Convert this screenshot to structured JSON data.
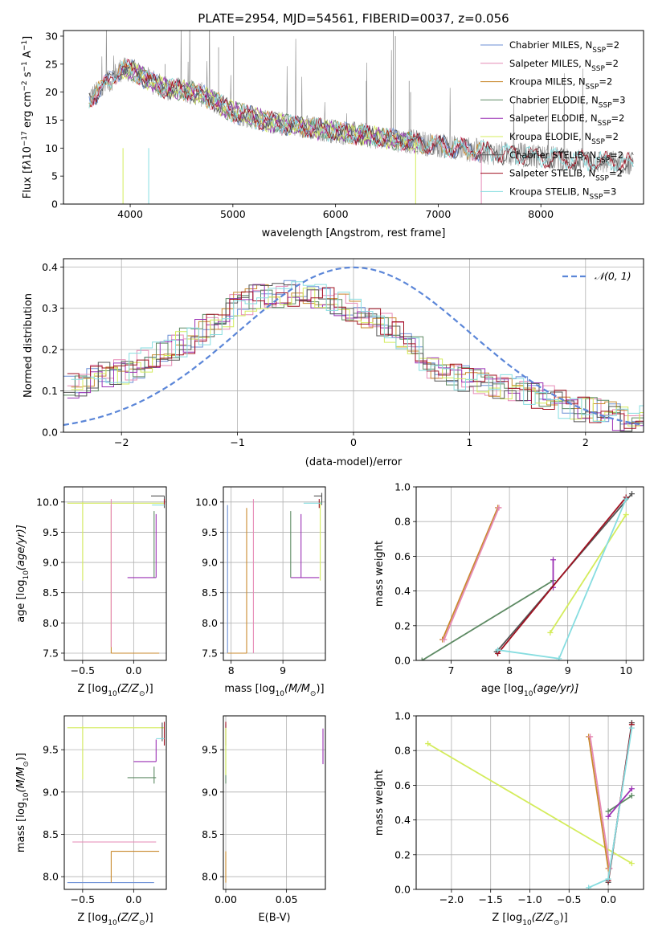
{
  "title": "PLATE=2954, MJD=54561, FIBERID=0037, z=0.056",
  "colors": {
    "Chabrier MILES": "#6b8fd6",
    "Salpeter MILES": "#e68ab6",
    "Kroupa MILES": "#c98a2e",
    "Chabrier ELODIE": "#5d8a63",
    "Salpeter ELODIE": "#9b30b5",
    "Kroupa ELODIE": "#d4ec5c",
    "Chabrier STELIB": "#555555",
    "Salpeter STELIB": "#a01020",
    "Kroupa STELIB": "#86dde0",
    "data": "#8c8c8c",
    "gaussian": "#5b86d8"
  },
  "chart_data": [
    {
      "type": "line",
      "id": "spectrum",
      "title": "PLATE=2954, MJD=54561, FIBERID=0037, z=0.056",
      "xlabel": "wavelength [Angstrom, rest frame]",
      "ylabel_parts": [
        "Flux [f",
        "λ",
        "10",
        "−17",
        " erg cm",
        "−2",
        " s",
        "−1",
        " A",
        "−1",
        "]"
      ],
      "xlim": [
        3350,
        9000
      ],
      "ylim": [
        0,
        31
      ],
      "xticks": [
        4000,
        5000,
        6000,
        7000,
        8000
      ],
      "yticks": [
        0,
        5,
        10,
        15,
        20,
        25,
        30
      ],
      "legend": [
        {
          "name": "Chabrier MILES",
          "nssp": "2"
        },
        {
          "name": "Salpeter MILES",
          "nssp": "2"
        },
        {
          "name": "Kroupa MILES",
          "nssp": "2"
        },
        {
          "name": "Chabrier ELODIE",
          "nssp": "3"
        },
        {
          "name": "Salpeter ELODIE",
          "nssp": "2"
        },
        {
          "name": "Kroupa ELODIE",
          "nssp": "2"
        },
        {
          "name": "Chabrier STELIB",
          "nssp": "2"
        },
        {
          "name": "Salpeter STELIB",
          "nssp": "2"
        },
        {
          "name": "Kroupa STELIB",
          "nssp": "3"
        }
      ],
      "legend_prefix": ", N",
      "legend_sub": "SSP",
      "legend_suffix": "=",
      "legend_position": "upper right",
      "continuum": {
        "x": [
          3600,
          3700,
          3800,
          3900,
          4000,
          4100,
          4200,
          4300,
          4400,
          4500,
          4600,
          4700,
          4800,
          4900,
          5000,
          5200,
          5400,
          5600,
          5800,
          6000,
          6200,
          6400,
          6600,
          6800,
          7000,
          7200,
          7400,
          7600,
          7800,
          8000,
          8200,
          8400,
          8600,
          8800
        ],
        "y": [
          19,
          20,
          22,
          24,
          24,
          23,
          22,
          21,
          20.5,
          20.5,
          20,
          19.5,
          18.5,
          17.5,
          16.5,
          15.5,
          14.5,
          14,
          13.5,
          13,
          12.5,
          12,
          11.5,
          11,
          10.5,
          10,
          9.5,
          9,
          8.8,
          8.5,
          8,
          7.8,
          7.5,
          7.3
        ]
      }
    },
    {
      "type": "line",
      "id": "residual-histogram",
      "xlabel": "(data-model)/error",
      "ylabel": "Normed distribution",
      "xlim": [
        -2.5,
        2.5
      ],
      "ylim": [
        0,
        0.42
      ],
      "xticks": [
        -2,
        -1,
        0,
        1,
        2
      ],
      "yticks": [
        0.0,
        0.1,
        0.2,
        0.3,
        0.4
      ],
      "legend_label": "𝒩(0, 1)",
      "gaussian": {
        "mean": 0,
        "sigma": 1
      },
      "histogram_envelope": {
        "x": [
          -2.5,
          -2.2,
          -2.0,
          -1.8,
          -1.5,
          -1.2,
          -1.0,
          -0.8,
          -0.5,
          -0.3,
          0.0,
          0.2,
          0.5,
          0.7,
          1.0,
          1.3,
          1.6,
          1.9,
          2.2,
          2.5
        ],
        "y": [
          0.11,
          0.13,
          0.15,
          0.17,
          0.21,
          0.26,
          0.31,
          0.33,
          0.34,
          0.33,
          0.3,
          0.27,
          0.22,
          0.15,
          0.13,
          0.11,
          0.09,
          0.06,
          0.04,
          0.03
        ]
      }
    },
    {
      "type": "scatter",
      "id": "age-vs-Z",
      "xlabel_parts": [
        "Z [log",
        "10",
        "(Z/Z",
        "⊙",
        ")]"
      ],
      "ylabel_parts": [
        "age  [log",
        "10",
        "(age/yr)]"
      ],
      "xlim": [
        -0.68,
        0.32
      ],
      "ylim": [
        7.38,
        10.25
      ],
      "xticks": [
        -0.5,
        0.0
      ],
      "yticks": [
        7.5,
        8.0,
        8.5,
        9.0,
        9.5,
        10.0
      ],
      "segments": [
        {
          "model": "Kroupa ELODIE",
          "x": [
            -0.5,
            -0.5
          ],
          "y": [
            8.7,
            10.0
          ]
        },
        {
          "model": "Kroupa ELODIE",
          "x": [
            -0.65,
            0.3
          ],
          "y": [
            9.98,
            9.98
          ]
        },
        {
          "model": "Kroupa MILES",
          "x": [
            -0.22,
            -0.22
          ],
          "y": [
            7.5,
            9.95
          ]
        },
        {
          "model": "Kroupa MILES",
          "x": [
            -0.22,
            0.25
          ],
          "y": [
            7.5,
            7.5
          ]
        },
        {
          "model": "Salpeter MILES",
          "x": [
            -0.22,
            -0.22
          ],
          "y": [
            7.6,
            10.05
          ]
        },
        {
          "model": "Salpeter ELODIE",
          "x": [
            0.22,
            0.22
          ],
          "y": [
            8.75,
            9.8
          ]
        },
        {
          "model": "Salpeter ELODIE",
          "x": [
            -0.06,
            0.22
          ],
          "y": [
            8.75,
            8.75
          ]
        },
        {
          "model": "Chabrier ELODIE",
          "x": [
            0.2,
            0.2
          ],
          "y": [
            8.75,
            9.85
          ]
        },
        {
          "model": "Chabrier STELIB",
          "x": [
            0.3,
            0.3
          ],
          "y": [
            9.9,
            10.1
          ]
        },
        {
          "model": "Chabrier STELIB",
          "x": [
            0.17,
            0.3
          ],
          "y": [
            10.1,
            10.1
          ]
        },
        {
          "model": "Salpeter STELIB",
          "x": [
            0.3,
            0.3
          ],
          "y": [
            9.95,
            10.05
          ]
        },
        {
          "model": "Kroupa STELIB",
          "x": [
            0.18,
            0.3
          ],
          "y": [
            9.95,
            9.95
          ]
        }
      ]
    },
    {
      "type": "scatter",
      "id": "age-vs-mass",
      "xlabel_parts": [
        "mass [log",
        "10",
        "(M/M",
        "⊙",
        ")]"
      ],
      "xlim": [
        7.85,
        9.82
      ],
      "ylim": [
        7.38,
        10.25
      ],
      "xticks": [
        8,
        9
      ],
      "yticks": [
        7.5,
        8.0,
        8.5,
        9.0,
        9.5,
        10.0
      ],
      "segments": [
        {
          "model": "Chabrier MILES",
          "x": [
            7.93,
            7.93
          ],
          "y": [
            7.5,
            9.95
          ]
        },
        {
          "model": "Kroupa MILES",
          "x": [
            8.3,
            8.3
          ],
          "y": [
            7.5,
            9.9
          ]
        },
        {
          "model": "Salpeter MILES",
          "x": [
            8.43,
            8.43
          ],
          "y": [
            7.5,
            10.05
          ]
        },
        {
          "model": "Kroupa MILES",
          "x": [
            7.93,
            8.3
          ],
          "y": [
            7.5,
            7.5
          ]
        },
        {
          "model": "Chabrier ELODIE",
          "x": [
            9.15,
            9.15
          ],
          "y": [
            8.75,
            9.85
          ]
        },
        {
          "model": "Salpeter ELODIE",
          "x": [
            9.35,
            9.35
          ],
          "y": [
            8.75,
            9.8
          ]
        },
        {
          "model": "Salpeter ELODIE",
          "x": [
            9.15,
            9.7
          ],
          "y": [
            8.75,
            8.75
          ]
        },
        {
          "model": "Kroupa ELODIE",
          "x": [
            9.72,
            9.72
          ],
          "y": [
            8.7,
            10.0
          ]
        },
        {
          "model": "Chabrier STELIB",
          "x": [
            9.6,
            9.75
          ],
          "y": [
            10.1,
            10.1
          ]
        },
        {
          "model": "Chabrier STELIB",
          "x": [
            9.75,
            9.75
          ],
          "y": [
            9.95,
            10.15
          ]
        },
        {
          "model": "Salpeter STELIB",
          "x": [
            9.7,
            9.7
          ],
          "y": [
            9.9,
            10.05
          ]
        },
        {
          "model": "Kroupa STELIB",
          "x": [
            9.4,
            9.75
          ],
          "y": [
            9.98,
            9.98
          ]
        }
      ]
    },
    {
      "type": "line",
      "id": "massweight-vs-age",
      "xlabel_parts": [
        "age  [log",
        "10",
        "(age/yr)]"
      ],
      "ylabel": "mass weight",
      "xlim": [
        6.4,
        10.3
      ],
      "ylim": [
        0,
        1.0
      ],
      "xticks": [
        7,
        8,
        9,
        10
      ],
      "yticks": [
        0.0,
        0.2,
        0.4,
        0.6,
        0.8,
        1.0
      ],
      "series": [
        {
          "model": "Kroupa MILES",
          "x": [
            6.85,
            7.8
          ],
          "y": [
            0.12,
            0.88
          ]
        },
        {
          "model": "Salpeter MILES",
          "x": [
            6.88,
            7.82
          ],
          "y": [
            0.12,
            0.88
          ]
        },
        {
          "model": "Chabrier ELODIE",
          "x": [
            6.5,
            8.75
          ],
          "y": [
            0.0,
            0.46
          ]
        },
        {
          "model": "Salpeter ELODIE",
          "x": [
            8.75,
            8.75
          ],
          "y": [
            0.42,
            0.58
          ]
        },
        {
          "model": "Chabrier STELIB",
          "x": [
            7.78,
            10.1
          ],
          "y": [
            0.05,
            0.96
          ]
        },
        {
          "model": "Salpeter STELIB",
          "x": [
            7.8,
            10.0
          ],
          "y": [
            0.04,
            0.94
          ]
        },
        {
          "model": "Kroupa ELODIE",
          "x": [
            8.7,
            10.0
          ],
          "y": [
            0.16,
            0.84
          ]
        },
        {
          "model": "Kroupa STELIB",
          "x": [
            7.8,
            8.85,
            10.0
          ],
          "y": [
            0.06,
            0.01,
            0.93
          ]
        }
      ]
    },
    {
      "type": "scatter",
      "id": "mass-vs-Z",
      "xlabel_parts": [
        "Z [log",
        "10",
        "(Z/Z",
        "⊙",
        ")]"
      ],
      "ylabel_parts": [
        "mass [log",
        "10",
        "(M/M",
        "⊙",
        ")]"
      ],
      "xlim": [
        -0.68,
        0.32
      ],
      "ylim": [
        7.85,
        9.9
      ],
      "xticks": [
        -0.5,
        0.0
      ],
      "yticks": [
        8.0,
        8.5,
        9.0,
        9.5
      ],
      "segments": [
        {
          "model": "Chabrier MILES",
          "x": [
            -0.65,
            0.2
          ],
          "y": [
            7.93,
            7.93
          ]
        },
        {
          "model": "Salpeter MILES",
          "x": [
            -0.6,
            0.22
          ],
          "y": [
            8.41,
            8.41
          ]
        },
        {
          "model": "Kroupa MILES",
          "x": [
            -0.22,
            0.25
          ],
          "y": [
            8.3,
            8.3
          ]
        },
        {
          "model": "Kroupa MILES",
          "x": [
            -0.22,
            -0.22
          ],
          "y": [
            7.93,
            8.3
          ]
        },
        {
          "model": "Chabrier ELODIE",
          "x": [
            -0.06,
            0.22
          ],
          "y": [
            9.17,
            9.17
          ]
        },
        {
          "model": "Chabrier ELODIE",
          "x": [
            0.2,
            0.2
          ],
          "y": [
            9.1,
            9.3
          ]
        },
        {
          "model": "Salpeter ELODIE",
          "x": [
            0.0,
            0.22
          ],
          "y": [
            9.36,
            9.36
          ]
        },
        {
          "model": "Salpeter ELODIE",
          "x": [
            0.22,
            0.22
          ],
          "y": [
            9.36,
            9.62
          ]
        },
        {
          "model": "Kroupa ELODIE",
          "x": [
            -0.65,
            0.3
          ],
          "y": [
            9.76,
            9.76
          ]
        },
        {
          "model": "Kroupa ELODIE",
          "x": [
            -0.5,
            -0.5
          ],
          "y": [
            9.15,
            9.78
          ]
        },
        {
          "model": "Chabrier STELIB",
          "x": [
            0.28,
            0.28
          ],
          "y": [
            9.6,
            9.82
          ]
        },
        {
          "model": "Salpeter STELIB",
          "x": [
            0.3,
            0.3
          ],
          "y": [
            9.55,
            9.83
          ]
        },
        {
          "model": "Kroupa STELIB",
          "x": [
            0.22,
            0.3
          ],
          "y": [
            9.63,
            9.63
          ]
        }
      ]
    },
    {
      "type": "scatter",
      "id": "mass-vs-ebv",
      "xlabel": "E(B-V)",
      "xlim": [
        -0.002,
        0.082
      ],
      "ylim": [
        7.85,
        9.9
      ],
      "xticks": [
        0.0,
        0.05
      ],
      "yticks": [
        8.0,
        8.5,
        9.0,
        9.5
      ],
      "segments": [
        {
          "model": "Kroupa MILES",
          "x": [
            0.0,
            0.0
          ],
          "y": [
            7.93,
            8.3
          ]
        },
        {
          "model": "Chabrier ELODIE",
          "x": [
            0.0,
            0.0
          ],
          "y": [
            9.1,
            9.8
          ]
        },
        {
          "model": "Salpeter STELIB",
          "x": [
            0.0,
            0.0
          ],
          "y": [
            9.55,
            9.83
          ]
        },
        {
          "model": "Kroupa ELODIE",
          "x": [
            0.0,
            0.0
          ],
          "y": [
            9.2,
            9.76
          ]
        },
        {
          "model": "Salpeter ELODIE",
          "x": [
            0.08,
            0.08
          ],
          "y": [
            9.33,
            9.75
          ]
        }
      ]
    },
    {
      "type": "line",
      "id": "massweight-vs-Z",
      "xlabel_parts": [
        "Z [log",
        "10",
        "(Z/Z",
        "⊙",
        ")]"
      ],
      "ylabel": "mass weight",
      "xlim": [
        -2.45,
        0.45
      ],
      "ylim": [
        0,
        1.0
      ],
      "xticks": [
        -2.0,
        -1.5,
        -1.0,
        -0.5,
        0.0
      ],
      "yticks": [
        0.0,
        0.2,
        0.4,
        0.6,
        0.8,
        1.0
      ],
      "series": [
        {
          "model": "Kroupa ELODIE",
          "x": [
            -2.3,
            0.3
          ],
          "y": [
            0.84,
            0.15
          ]
        },
        {
          "model": "Kroupa MILES",
          "x": [
            -0.25,
            0.0
          ],
          "y": [
            0.88,
            0.12
          ]
        },
        {
          "model": "Salpeter MILES",
          "x": [
            -0.23,
            0.02
          ],
          "y": [
            0.88,
            0.12
          ]
        },
        {
          "model": "Chabrier STELIB",
          "x": [
            0.0,
            0.3
          ],
          "y": [
            0.04,
            0.96
          ]
        },
        {
          "model": "Salpeter STELIB",
          "x": [
            0.0,
            0.3
          ],
          "y": [
            0.05,
            0.95
          ]
        },
        {
          "model": "Kroupa STELIB",
          "x": [
            -0.25,
            0.0,
            0.3
          ],
          "y": [
            0.01,
            0.06,
            0.93
          ]
        },
        {
          "model": "Chabrier ELODIE",
          "x": [
            0.0,
            0.3
          ],
          "y": [
            0.45,
            0.54
          ]
        },
        {
          "model": "Salpeter ELODIE",
          "x": [
            0.0,
            0.3
          ],
          "y": [
            0.42,
            0.58
          ]
        }
      ]
    }
  ]
}
